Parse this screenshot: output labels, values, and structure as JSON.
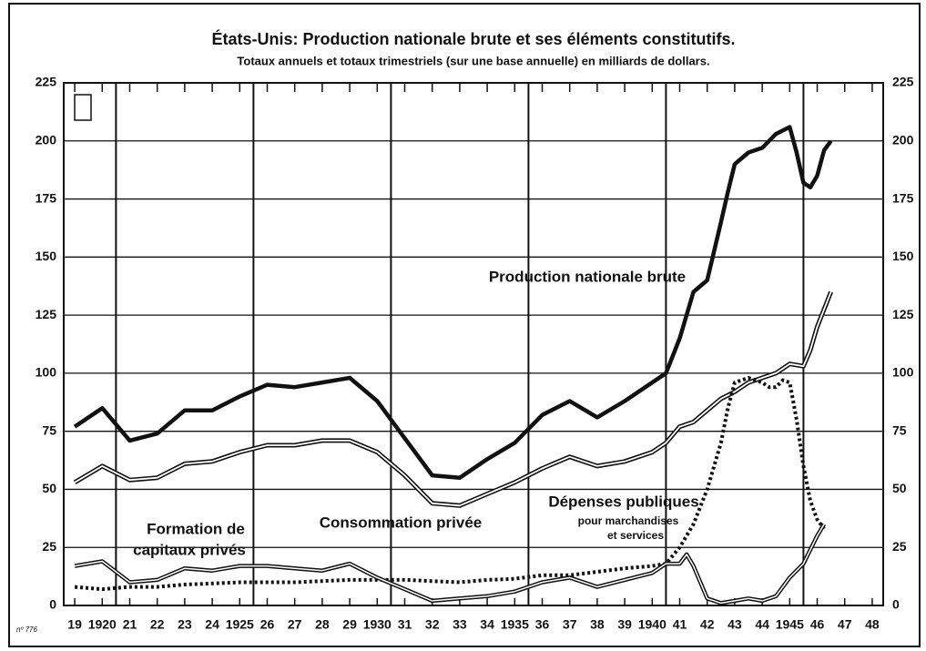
{
  "chart_data": {
    "type": "line",
    "title": "États-Unis: Production nationale brute et ses éléments constitutifs.",
    "subtitle": "Totaux annuels et totaux trimestriels (sur une base annuelle) en milliards de dollars.",
    "note": "nº 776",
    "xlim": [
      1918.6,
      1948.4
    ],
    "xticks": [
      {
        "value": 1919,
        "label": "19"
      },
      1920,
      {
        "value": 1921,
        "label": "21"
      },
      {
        "value": 1922,
        "label": "22"
      },
      {
        "value": 1923,
        "label": "23"
      },
      {
        "value": 1924,
        "label": "24"
      },
      1925,
      {
        "value": 1926,
        "label": "26"
      },
      {
        "value": 1927,
        "label": "27"
      },
      {
        "value": 1928,
        "label": "28"
      },
      {
        "value": 1929,
        "label": "29"
      },
      1930,
      {
        "value": 1931,
        "label": "31"
      },
      {
        "value": 1932,
        "label": "32"
      },
      {
        "value": 1933,
        "label": "33"
      },
      {
        "value": 1934,
        "label": "34"
      },
      1935,
      {
        "value": 1936,
        "label": "36"
      },
      {
        "value": 1937,
        "label": "37"
      },
      {
        "value": 1938,
        "label": "38"
      },
      {
        "value": 1939,
        "label": "39"
      },
      1940,
      {
        "value": 1941,
        "label": "41"
      },
      {
        "value": 1942,
        "label": "42"
      },
      {
        "value": 1943,
        "label": "43"
      },
      {
        "value": 1944,
        "label": "44"
      },
      1945,
      {
        "value": 1946,
        "label": "46"
      },
      {
        "value": 1947,
        "label": "47"
      },
      {
        "value": 1948,
        "label": "48"
      }
    ],
    "ylim": [
      0,
      225
    ],
    "yticks": [
      0,
      25,
      50,
      75,
      100,
      125,
      150,
      175,
      200,
      225
    ],
    "grid": true,
    "annotations": [
      "Production nationale brute",
      "Consommation privée",
      "Dépenses publiques",
      "pour marchandises",
      "et services",
      "Formation de",
      "capitaux privés"
    ],
    "series": [
      {
        "name": "Production nationale brute",
        "color": "#111111",
        "style": "solid",
        "x": [
          1919,
          1920,
          1921,
          1922,
          1923,
          1924,
          1925,
          1926,
          1927,
          1928,
          1929,
          1930,
          1931,
          1932,
          1933,
          1934,
          1935,
          1936,
          1937,
          1938,
          1939,
          1940,
          1940.5,
          1941,
          1941.5,
          1942,
          1942.5,
          1942.75,
          1943,
          1943.5,
          1944,
          1944.5,
          1945,
          1945.25,
          1945.5,
          1945.75,
          1946,
          1946.25,
          1946.5
        ],
        "values": [
          77,
          85,
          71,
          74,
          84,
          84,
          90,
          95,
          94,
          96,
          98,
          88,
          72,
          56,
          55,
          63,
          70,
          82,
          88,
          81,
          88,
          96,
          100,
          115,
          135,
          140,
          165,
          178,
          190,
          195,
          197,
          203,
          206,
          195,
          182,
          180,
          185,
          196,
          200
        ]
      },
      {
        "name": "Consommation privée",
        "color": "#111111",
        "style": "double",
        "x": [
          1919,
          1920,
          1921,
          1922,
          1923,
          1924,
          1925,
          1926,
          1927,
          1928,
          1929,
          1930,
          1931,
          1932,
          1933,
          1934,
          1935,
          1936,
          1937,
          1938,
          1939,
          1940,
          1940.5,
          1941,
          1941.5,
          1942,
          1942.5,
          1943,
          1943.5,
          1944,
          1944.5,
          1945,
          1945.5,
          1945.75,
          1946,
          1946.5
        ],
        "values": [
          53,
          60,
          54,
          55,
          61,
          62,
          66,
          69,
          69,
          71,
          71,
          66,
          56,
          44,
          43,
          48,
          53,
          59,
          64,
          60,
          62,
          66,
          70,
          77,
          79,
          84,
          89,
          92,
          96,
          98,
          100,
          104,
          103,
          110,
          120,
          135
        ]
      },
      {
        "name": "Dépenses publiques",
        "color": "#111111",
        "style": "dotted",
        "x": [
          1919,
          1920,
          1921,
          1922,
          1923,
          1924,
          1925,
          1926,
          1927,
          1928,
          1929,
          1930,
          1931,
          1932,
          1933,
          1934,
          1935,
          1936,
          1937,
          1938,
          1939,
          1940,
          1940.5,
          1941,
          1941.5,
          1942,
          1942.5,
          1942.75,
          1943,
          1943.5,
          1944,
          1944.25,
          1944.5,
          1944.75,
          1945,
          1945.25,
          1945.5,
          1945.75,
          1946,
          1946.25
        ],
        "values": [
          8,
          7,
          8,
          8,
          9,
          9.5,
          10,
          10,
          10,
          10.5,
          11,
          11,
          11,
          10.5,
          10,
          11,
          11.5,
          13,
          13,
          14.5,
          16,
          17,
          18,
          25,
          35,
          50,
          70,
          85,
          96,
          98,
          96,
          94,
          94,
          97,
          96,
          80,
          60,
          45,
          37,
          33
        ]
      },
      {
        "name": "Formation de capitaux privés",
        "color": "#111111",
        "style": "double-thin",
        "x": [
          1919,
          1920,
          1921,
          1922,
          1923,
          1924,
          1925,
          1926,
          1927,
          1928,
          1929,
          1930,
          1931,
          1932,
          1933,
          1934,
          1935,
          1936,
          1937,
          1938,
          1939,
          1940,
          1940.5,
          1941,
          1941.25,
          1941.5,
          1942,
          1942.5,
          1943,
          1943.5,
          1944,
          1944.5,
          1945,
          1945.5,
          1946,
          1946.25
        ],
        "values": [
          17,
          19,
          10,
          11,
          16,
          15,
          17,
          17,
          16,
          15,
          18,
          12,
          7,
          2,
          3,
          4,
          6,
          10,
          12,
          8,
          11,
          14,
          18,
          18,
          22,
          17,
          3,
          1,
          2,
          3,
          2,
          4,
          12,
          18,
          30,
          35
        ]
      }
    ]
  }
}
